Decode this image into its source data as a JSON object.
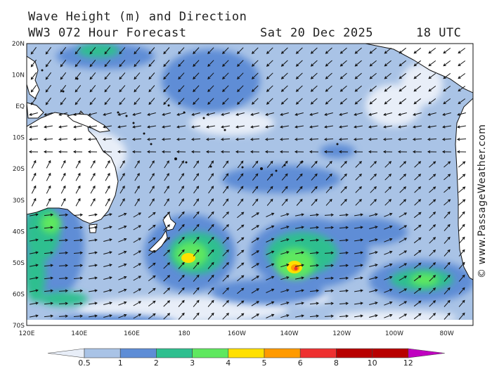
{
  "header": {
    "line1": "Wave Height (m) and Direction",
    "model": "WW3 072 Hour Forecast",
    "date": "Sat 20 Dec 2025",
    "time": "18 UTC"
  },
  "credit": "© www.PassageWeather.com",
  "map": {
    "lon_range": [
      120,
      290
    ],
    "lat_range": [
      -70,
      20
    ],
    "lat_labels": [
      {
        "lat": 20,
        "text": "20N"
      },
      {
        "lat": 10,
        "text": "10N"
      },
      {
        "lat": 0,
        "text": "EQ"
      },
      {
        "lat": -10,
        "text": "10S"
      },
      {
        "lat": -20,
        "text": "20S"
      },
      {
        "lat": -30,
        "text": "30S"
      },
      {
        "lat": -40,
        "text": "40S"
      },
      {
        "lat": -50,
        "text": "50S"
      },
      {
        "lat": -60,
        "text": "60S"
      },
      {
        "lat": -70,
        "text": "70S"
      }
    ],
    "lon_labels": [
      {
        "lon": 120,
        "text": "120E"
      },
      {
        "lon": 140,
        "text": "140E"
      },
      {
        "lon": 160,
        "text": "160E"
      },
      {
        "lon": 180,
        "text": "180"
      },
      {
        "lon": 200,
        "text": "160W"
      },
      {
        "lon": 220,
        "text": "140W"
      },
      {
        "lon": 240,
        "text": "120W"
      },
      {
        "lon": 260,
        "text": "100W"
      },
      {
        "lon": 280,
        "text": "80W"
      }
    ]
  },
  "colorbar": {
    "ticks": [
      "0.5",
      "1",
      "2",
      "3",
      "4",
      "5",
      "6",
      "8",
      "10",
      "12"
    ],
    "colors": [
      "#e8eef8",
      "#a9c3e6",
      "#5e8dd6",
      "#2fbf8f",
      "#5fe85f",
      "#ffe000",
      "#ff9a00",
      "#ee3030",
      "#b80000",
      "#c000c0"
    ]
  }
}
